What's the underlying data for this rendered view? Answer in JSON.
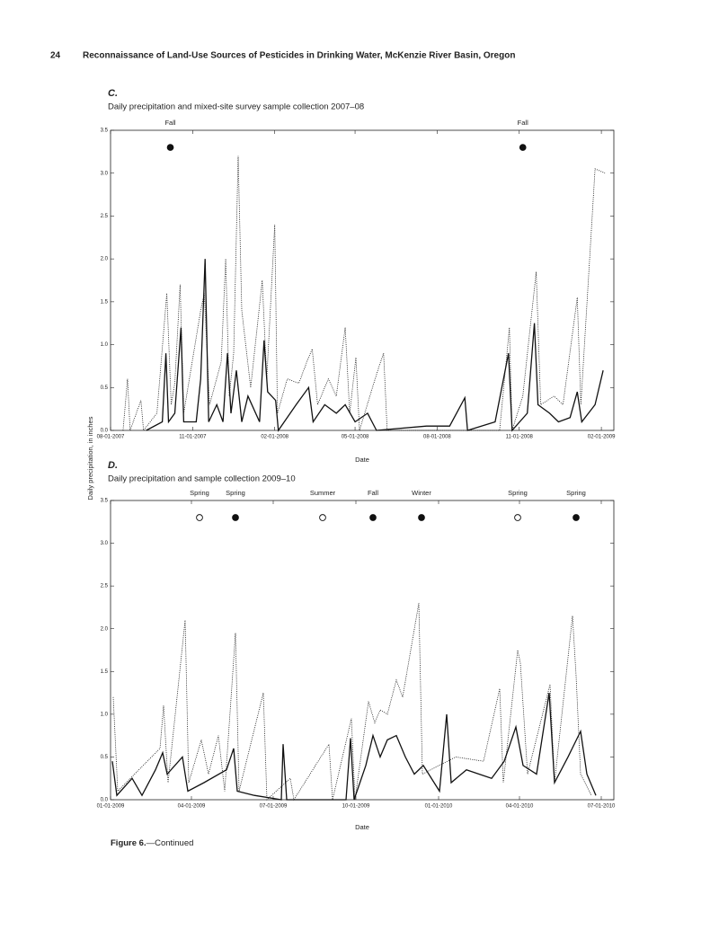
{
  "header": {
    "page": "24",
    "title": "Reconnaissance of Land-Use Sources of Pesticides in Drinking Water, McKenzie River Basin, Oregon"
  },
  "y_axis_label": "Daily precipitation, in inches",
  "chart_data": [
    {
      "type": "line",
      "panel": "C.",
      "title": "Daily precipitation and mixed-site survey sample collection 2007–08",
      "xlabel": "Date",
      "xlim": [
        "2007-08-01",
        "2009-02-15"
      ],
      "xticks": [
        {
          "value": "2007-08-01",
          "label": "08-01-2007"
        },
        {
          "value": "2007-11-01",
          "label": "11-01-2007"
        },
        {
          "value": "2008-02-01",
          "label": "02-01-2008"
        },
        {
          "value": "2008-05-01",
          "label": "05-01-2008"
        },
        {
          "value": "2008-08-01",
          "label": "08-01-2008"
        },
        {
          "value": "2008-11-01",
          "label": "11-01-2008"
        },
        {
          "value": "2009-02-01",
          "label": "02-01-2009"
        }
      ],
      "ylim": [
        0,
        3.5
      ],
      "yticks": [
        {
          "value": 0,
          "label": "0.0"
        },
        0.5,
        {
          "value": 1,
          "label": "1.0"
        },
        1.5,
        {
          "value": 2,
          "label": "2.0"
        },
        2.5,
        {
          "value": 3,
          "label": "3.0"
        },
        3.5
      ],
      "markers": [
        {
          "label": "Fall",
          "x": "2007-10-07",
          "y": 3.3,
          "filled": true
        },
        {
          "label": "Fall",
          "x": "2008-11-05",
          "y": 3.3,
          "filled": true
        }
      ],
      "series": [
        {
          "style": "solid",
          "color": "#111111",
          "x": [
            "2007-09-10",
            "2007-09-28",
            "2007-10-02",
            "2007-10-05",
            "2007-10-12",
            "2007-10-19",
            "2007-10-22",
            "2007-11-05",
            "2007-11-10",
            "2007-11-15",
            "2007-11-19",
            "2007-11-28",
            "2007-12-05",
            "2007-12-10",
            "2007-12-14",
            "2007-12-20",
            "2007-12-26",
            "2008-01-02",
            "2008-01-15",
            "2008-01-20",
            "2008-01-24",
            "2008-02-02",
            "2008-02-05",
            "2008-02-25",
            "2008-03-10",
            "2008-03-15",
            "2008-03-28",
            "2008-04-10",
            "2008-04-20",
            "2008-05-01",
            "2008-05-15",
            "2008-05-25",
            "2008-07-20",
            "2008-08-15",
            "2008-09-01",
            "2008-09-04",
            "2008-10-05",
            "2008-10-20",
            "2008-10-24",
            "2008-11-10",
            "2008-11-18",
            "2008-11-22",
            "2008-12-05",
            "2008-12-15",
            "2008-12-28",
            "2009-01-05",
            "2009-01-10",
            "2009-01-25",
            "2009-02-03"
          ],
          "values": [
            0,
            0.1,
            0.9,
            0.1,
            0.2,
            1.2,
            0.1,
            0.1,
            0.6,
            2.0,
            0.1,
            0.3,
            0.1,
            0.9,
            0.2,
            0.7,
            0.1,
            0.4,
            0.1,
            1.05,
            0.45,
            0.35,
            0,
            0.3,
            0.5,
            0.1,
            0.3,
            0.2,
            0.3,
            0.1,
            0.2,
            0,
            0.05,
            0.05,
            0.38,
            0,
            0.1,
            0.9,
            0,
            0.2,
            1.25,
            0.3,
            0.2,
            0.1,
            0.15,
            0.45,
            0.1,
            0.3,
            0.7
          ]
        },
        {
          "style": "dotted",
          "color": "#111111",
          "x": [
            "2007-08-15",
            "2007-08-20",
            "2007-08-23",
            "2007-09-04",
            "2007-09-07",
            "2007-09-22",
            "2007-10-03",
            "2007-10-08",
            "2007-10-12",
            "2007-10-18",
            "2007-10-22",
            "2007-11-10",
            "2007-11-14",
            "2007-11-20",
            "2007-12-03",
            "2007-12-08",
            "2007-12-12",
            "2007-12-17",
            "2007-12-22",
            "2007-12-26",
            "2008-01-05",
            "2008-01-18",
            "2008-01-23",
            "2008-02-01",
            "2008-02-04",
            "2008-02-15",
            "2008-02-28",
            "2008-03-08",
            "2008-03-14",
            "2008-03-20",
            "2008-04-01",
            "2008-04-10",
            "2008-04-20",
            "2008-04-25",
            "2008-05-02",
            "2008-05-06",
            "2008-05-22",
            "2008-05-28",
            "2008-06-02",
            "2008-06-06",
            "2008-10-10",
            "2008-10-21",
            "2008-10-24",
            "2008-11-05",
            "2008-11-20",
            "2008-11-25",
            "2008-12-10",
            "2008-12-20",
            "2009-01-05",
            "2009-01-09",
            "2009-01-25",
            "2009-02-05"
          ],
          "values": [
            0,
            0.6,
            0,
            0.35,
            0,
            0.2,
            1.6,
            0.3,
            0.55,
            1.7,
            0.2,
            1.4,
            1.6,
            0.3,
            0.8,
            2.0,
            0.4,
            0.9,
            3.2,
            1.4,
            0.5,
            1.75,
            0.6,
            2.4,
            0.2,
            0.6,
            0.55,
            0.8,
            0.95,
            0.3,
            0.6,
            0.4,
            1.2,
            0.2,
            0.85,
            0,
            0.55,
            0.75,
            0.9,
            0,
            0,
            1.2,
            0,
            0.4,
            1.85,
            0.3,
            0.4,
            0.3,
            1.55,
            0.3,
            3.05,
            3.0
          ]
        }
      ]
    },
    {
      "type": "line",
      "panel": "D.",
      "title": "Daily precipitation and sample collection 2009–10",
      "xlabel": "Date",
      "xlim": [
        "2009-01-01",
        "2010-07-15"
      ],
      "xticks": [
        {
          "value": "2009-01-01",
          "label": "01-01-2009"
        },
        {
          "value": "2009-04-01",
          "label": "04-01-2009"
        },
        {
          "value": "2009-07-01",
          "label": "07-01-2009"
        },
        {
          "value": "2009-10-01",
          "label": "10-01-2009"
        },
        {
          "value": "2010-01-01",
          "label": "01-01-2010"
        },
        {
          "value": "2010-04-01",
          "label": "04-01-2010"
        },
        {
          "value": "2010-07-01",
          "label": "07-01-2010"
        }
      ],
      "ylim": [
        0,
        3.5
      ],
      "yticks": [
        {
          "value": 0,
          "label": "0.0"
        },
        0.5,
        {
          "value": 1,
          "label": "1.0"
        },
        1.5,
        {
          "value": 2,
          "label": "2.0"
        },
        2.5,
        {
          "value": 3,
          "label": "3.0"
        },
        3.5
      ],
      "markers": [
        {
          "label": "Spring",
          "x": "2009-04-10",
          "y": 3.3,
          "filled": false
        },
        {
          "label": "Spring",
          "x": "2009-05-20",
          "y": 3.3,
          "filled": true
        },
        {
          "label": "Summer",
          "x": "2009-08-25",
          "y": 3.3,
          "filled": false
        },
        {
          "label": "Fall",
          "x": "2009-10-20",
          "y": 3.3,
          "filled": true
        },
        {
          "label": "Winter",
          "x": "2009-12-13",
          "y": 3.3,
          "filled": true
        },
        {
          "label": "Spring",
          "x": "2010-03-30",
          "y": 3.3,
          "filled": false
        },
        {
          "label": "Spring",
          "x": "2010-06-03",
          "y": 3.3,
          "filled": true
        }
      ],
      "series": [
        {
          "style": "solid",
          "color": "#111111",
          "x": [
            "2009-01-03",
            "2009-01-08",
            "2009-01-25",
            "2009-02-05",
            "2009-02-20",
            "2009-02-28",
            "2009-03-05",
            "2009-03-22",
            "2009-03-28",
            "2009-04-15",
            "2009-05-10",
            "2009-05-18",
            "2009-05-22",
            "2009-06-10",
            "2009-07-10",
            "2009-07-12",
            "2009-07-16",
            "2009-09-20",
            "2009-09-25",
            "2009-09-29",
            "2009-10-12",
            "2009-10-20",
            "2009-10-28",
            "2009-11-05",
            "2009-11-15",
            "2009-11-25",
            "2009-12-05",
            "2009-12-15",
            "2010-01-02",
            "2010-01-10",
            "2010-01-15",
            "2010-02-01",
            "2010-02-15",
            "2010-03-01",
            "2010-03-15",
            "2010-03-28",
            "2010-04-05",
            "2010-04-20",
            "2010-05-04",
            "2010-05-10",
            "2010-05-25",
            "2010-06-08",
            "2010-06-15",
            "2010-06-25"
          ],
          "values": [
            0.45,
            0.05,
            0.25,
            0.05,
            0.35,
            0.55,
            0.3,
            0.5,
            0.1,
            0.2,
            0.35,
            0.6,
            0.1,
            0.05,
            0,
            0.65,
            0,
            0,
            0.72,
            0,
            0.4,
            0.75,
            0.5,
            0.7,
            0.75,
            0.5,
            0.3,
            0.4,
            0.1,
            1.0,
            0.2,
            0.35,
            0.3,
            0.25,
            0.45,
            0.85,
            0.4,
            0.3,
            1.25,
            0.2,
            0.5,
            0.8,
            0.3,
            0.05
          ]
        },
        {
          "style": "dotted",
          "color": "#111111",
          "x": [
            "2009-01-04",
            "2009-01-09",
            "2009-02-25",
            "2009-03-01",
            "2009-03-06",
            "2009-03-25",
            "2009-03-29",
            "2009-04-12",
            "2009-04-20",
            "2009-05-01",
            "2009-05-08",
            "2009-05-20",
            "2009-05-24",
            "2009-06-20",
            "2009-06-24",
            "2009-07-20",
            "2009-07-24",
            "2009-09-01",
            "2009-09-05",
            "2009-09-26",
            "2009-09-30",
            "2009-10-15",
            "2009-10-22",
            "2009-10-28",
            "2009-11-05",
            "2009-11-15",
            "2009-11-22",
            "2009-12-10",
            "2009-12-14",
            "2010-01-20",
            "2010-02-20",
            "2010-03-10",
            "2010-03-14",
            "2010-03-30",
            "2010-04-02",
            "2010-04-10",
            "2010-05-05",
            "2010-05-10",
            "2010-05-30",
            "2010-06-03",
            "2010-06-08",
            "2010-06-20"
          ],
          "values": [
            1.2,
            0.1,
            0.6,
            1.1,
            0.2,
            2.1,
            0.2,
            0.7,
            0.3,
            0.75,
            0.1,
            1.95,
            0.1,
            1.25,
            0,
            0.25,
            0,
            0.65,
            0,
            0.95,
            0,
            1.15,
            0.9,
            1.05,
            1.0,
            1.4,
            1.2,
            2.3,
            0.3,
            0.5,
            0.45,
            1.3,
            0.2,
            1.75,
            1.6,
            0.3,
            1.35,
            0.2,
            2.15,
            1.45,
            0.3,
            0.05
          ]
        }
      ]
    }
  ],
  "caption": {
    "label": "Figure 6.",
    "text": "—Continued"
  }
}
